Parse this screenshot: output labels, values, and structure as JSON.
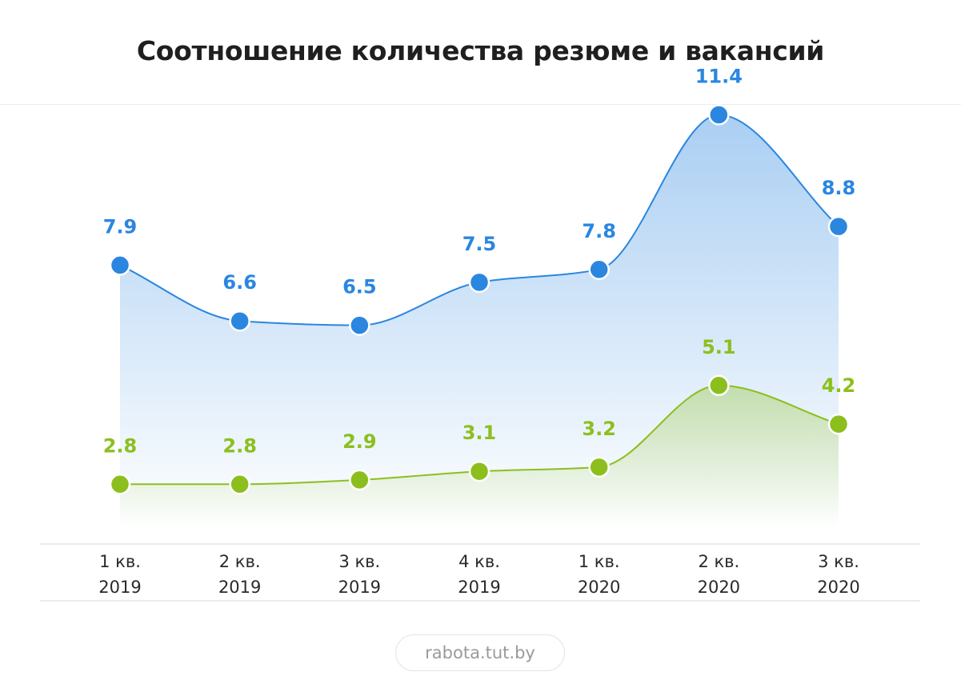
{
  "title": "Соотношение количества резюме и вакансий",
  "source": "rabota.tut.by",
  "colors": {
    "blue": "#2b86e0",
    "green": "#8cbf1e",
    "axis_line": "#e6e6e6"
  },
  "chart_data": {
    "type": "area",
    "title": "Соотношение количества резюме и вакансий",
    "xlabel": "",
    "ylabel": "",
    "categories": [
      [
        "1 кв.",
        "2019"
      ],
      [
        "2 кв.",
        "2019"
      ],
      [
        "3 кв.",
        "2019"
      ],
      [
        "4 кв.",
        "2019"
      ],
      [
        "1 кв.",
        "2020"
      ],
      [
        "2 кв.",
        "2020"
      ],
      [
        "3 кв.",
        "2020"
      ]
    ],
    "series": [
      {
        "values": [
          7.9,
          6.6,
          6.5,
          7.5,
          7.8,
          11.4,
          8.8
        ],
        "labels": [
          "7.9",
          "6.6",
          "6.5",
          "7.5",
          "7.8",
          "11.4",
          "8.8"
        ],
        "color": "#2b86e0"
      },
      {
        "values": [
          2.8,
          2.8,
          2.9,
          3.1,
          3.2,
          5.1,
          4.2
        ],
        "labels": [
          "2.8",
          "2.8",
          "2.9",
          "3.1",
          "3.2",
          "5.1",
          "4.2"
        ],
        "color": "#8cbf1e"
      }
    ],
    "grid": false,
    "legend": "none"
  }
}
